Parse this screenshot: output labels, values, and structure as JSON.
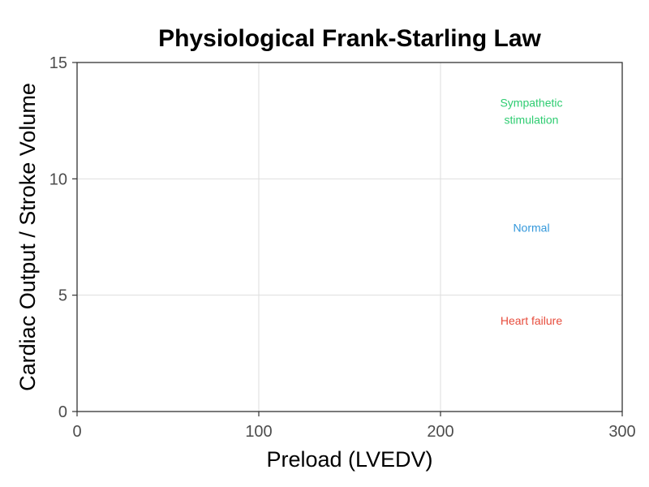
{
  "chart_data": {
    "type": "line",
    "title": "Physiological Frank-Starling Law",
    "xlabel": "Preload (LVEDV)",
    "ylabel": "Cardiac Output / Stroke Volume",
    "xlim": [
      0,
      300
    ],
    "ylim": [
      0,
      15
    ],
    "x_ticks": [
      0,
      100,
      200,
      300
    ],
    "y_ticks": [
      0,
      5,
      10,
      15
    ],
    "grid": true,
    "series": [],
    "annotations": [
      {
        "lines": [
          "Sympathetic",
          "stimulation"
        ],
        "x": 250,
        "y": 12.9,
        "color": "#2ecc71"
      },
      {
        "lines": [
          "Normal"
        ],
        "x": 250,
        "y": 7.9,
        "color": "#3498db"
      },
      {
        "lines": [
          "Heart failure"
        ],
        "x": 250,
        "y": 3.9,
        "color": "#e74c3c"
      }
    ]
  }
}
